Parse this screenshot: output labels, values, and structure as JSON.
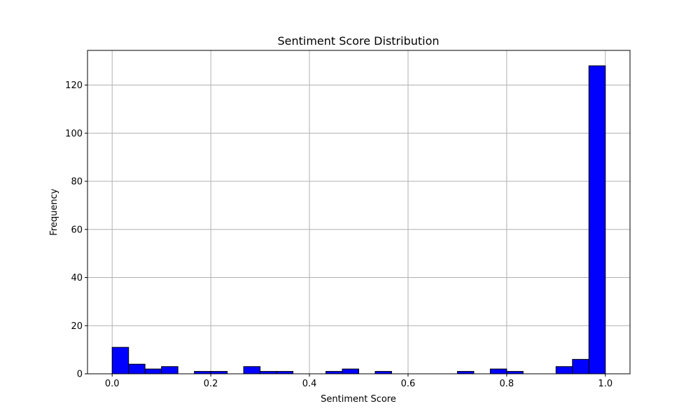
{
  "chart_data": {
    "type": "histogram",
    "title": "Sentiment Score Distribution",
    "xlabel": "Sentiment Score",
    "ylabel": "Frequency",
    "xlim": [
      -0.05,
      1.05
    ],
    "ylim": [
      0,
      134.4
    ],
    "x_ticks": [
      {
        "value": 0.0,
        "label": "0.0"
      },
      {
        "value": 0.2,
        "label": "0.2"
      },
      {
        "value": 0.4,
        "label": "0.4"
      },
      {
        "value": 0.6,
        "label": "0.6"
      },
      {
        "value": 0.8,
        "label": "0.8"
      },
      {
        "value": 1.0,
        "label": "1.0"
      }
    ],
    "y_ticks": [
      {
        "value": 0,
        "label": "0"
      },
      {
        "value": 20,
        "label": "20"
      },
      {
        "value": 40,
        "label": "40"
      },
      {
        "value": 60,
        "label": "60"
      },
      {
        "value": 80,
        "label": "80"
      },
      {
        "value": 100,
        "label": "100"
      },
      {
        "value": 120,
        "label": "120"
      }
    ],
    "grid": true,
    "bins": {
      "start": 0.0,
      "end": 1.0,
      "counts": [
        11,
        4,
        2,
        3,
        0,
        1,
        1,
        0,
        3,
        1,
        1,
        0,
        0,
        1,
        2,
        0,
        1,
        0,
        0,
        0,
        0,
        1,
        0,
        2,
        1,
        0,
        0,
        3,
        6,
        128
      ]
    },
    "bar_color": "#0000ff",
    "edge_color": "#000000",
    "grid_color": "#b0b0b0"
  }
}
